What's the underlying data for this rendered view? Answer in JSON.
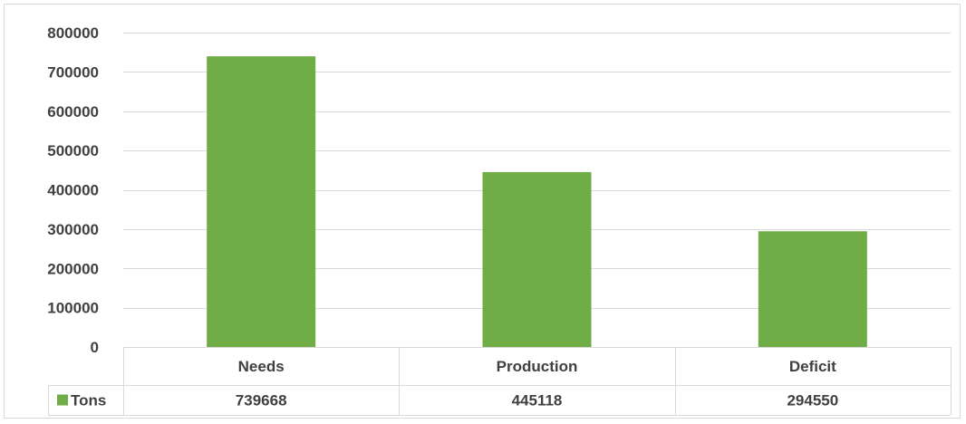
{
  "chart_data": {
    "type": "bar",
    "categories": [
      "Needs",
      "Production",
      "Deficit"
    ],
    "series": [
      {
        "name": "Tons",
        "values": [
          739668,
          445118,
          294550
        ],
        "color": "#70ad47"
      }
    ],
    "ylim": [
      0,
      800000
    ],
    "yticks": [
      "0",
      "100000",
      "200000",
      "300000",
      "400000",
      "500000",
      "600000",
      "700000",
      "800000"
    ],
    "data_table": {
      "row_label": "Tons",
      "values": [
        "739668",
        "445118",
        "294550"
      ]
    },
    "grid": true,
    "legend": "data-table"
  },
  "colors": {
    "bar": "#70ad47",
    "gridline": "#d9d9d9",
    "text": "#404040",
    "frame": "#d9d9d9"
  }
}
